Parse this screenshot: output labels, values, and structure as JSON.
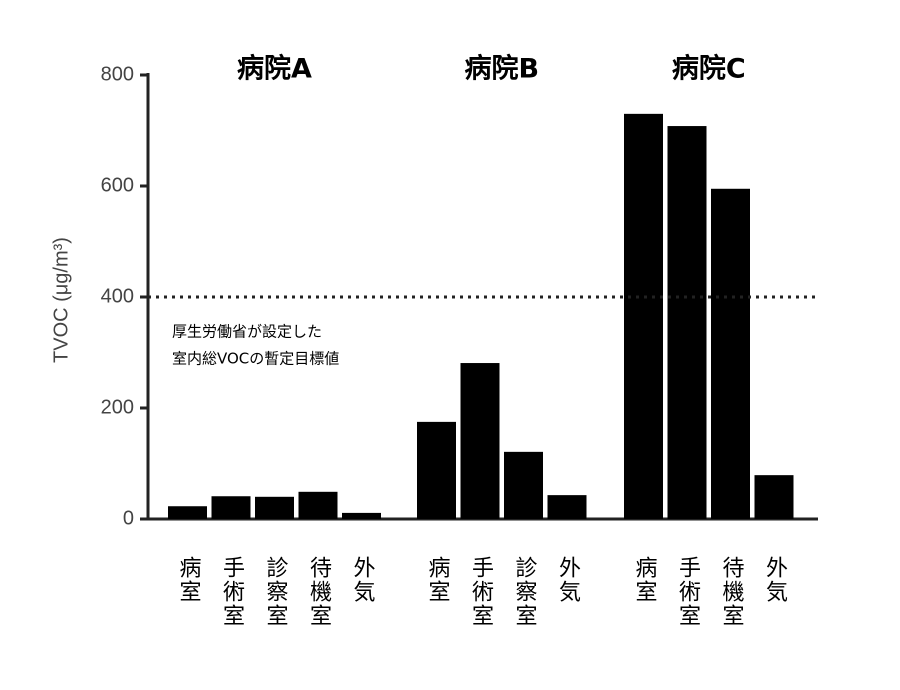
{
  "chart_data": {
    "type": "bar",
    "ylabel": "TVOC (μg/m³)",
    "ylim": [
      0,
      800
    ],
    "yticks": [
      0,
      200,
      400,
      600,
      800
    ],
    "color": "#000000",
    "groups": [
      {
        "name": "病院A",
        "categories": [
          "病室",
          "手術室",
          "診察室",
          "待機室",
          "外気"
        ],
        "values": [
          23,
          41,
          40,
          49,
          11
        ]
      },
      {
        "name": "病院B",
        "categories": [
          "病室",
          "手術室",
          "診察室",
          "外気"
        ],
        "values": [
          175,
          281,
          121,
          43
        ]
      },
      {
        "name": "病院C",
        "categories": [
          "病室",
          "手術室",
          "待機室",
          "外気"
        ],
        "values": [
          730,
          708,
          595,
          79
        ]
      }
    ],
    "reference_line": {
      "value": 400,
      "label": [
        "厚生労働省が設定した",
        "室内総VOCの暫定目標値"
      ]
    }
  }
}
